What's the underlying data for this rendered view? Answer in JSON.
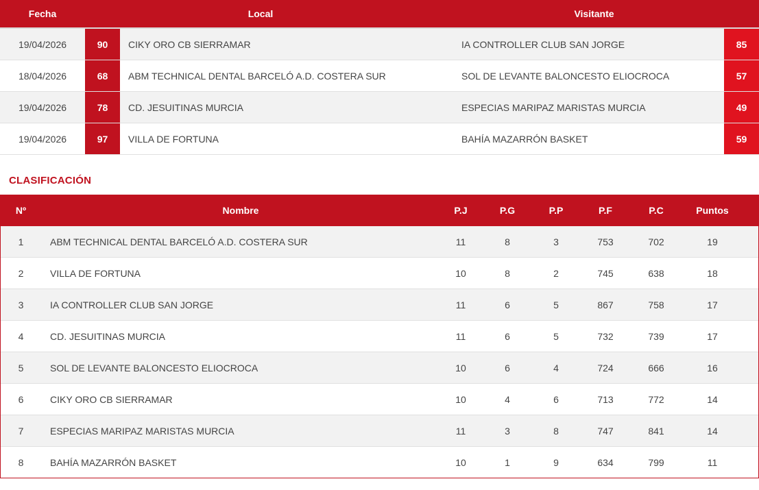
{
  "results": {
    "headers": {
      "fecha": "Fecha",
      "local": "Local",
      "visitante": "Visitante"
    },
    "rows": [
      {
        "fecha": "19/04/2026",
        "local_score": "90",
        "local": "CIKY ORO CB SIERRAMAR",
        "visitante": "IA CONTROLLER CLUB SAN JORGE",
        "visit_score": "85"
      },
      {
        "fecha": "18/04/2026",
        "local_score": "68",
        "local": "ABM TECHNICAL DENTAL BARCELÓ A.D. COSTERA SUR",
        "visitante": "SOL DE LEVANTE BALONCESTO ELIOCROCA",
        "visit_score": "57"
      },
      {
        "fecha": "19/04/2026",
        "local_score": "78",
        "local": "CD. JESUITINAS MURCIA",
        "visitante": "ESPECIAS MARIPAZ MARISTAS MURCIA",
        "visit_score": "49"
      },
      {
        "fecha": "19/04/2026",
        "local_score": "97",
        "local": "VILLA DE FORTUNA",
        "visitante": "BAHÍA MAZARRÓN BASKET",
        "visit_score": "59"
      }
    ]
  },
  "standings": {
    "title": "CLASIFICACIÓN",
    "headers": {
      "n": "Nº",
      "nombre": "Nombre",
      "pj": "P.J",
      "pg": "P.G",
      "pp": "P.P",
      "pf": "P.F",
      "pc": "P.C",
      "puntos": "Puntos"
    },
    "rows": [
      {
        "n": "1",
        "nombre": "ABM TECHNICAL DENTAL BARCELÓ A.D. COSTERA SUR",
        "pj": "11",
        "pg": "8",
        "pp": "3",
        "pf": "753",
        "pc": "702",
        "puntos": "19"
      },
      {
        "n": "2",
        "nombre": "VILLA DE FORTUNA",
        "pj": "10",
        "pg": "8",
        "pp": "2",
        "pf": "745",
        "pc": "638",
        "puntos": "18"
      },
      {
        "n": "3",
        "nombre": "IA CONTROLLER CLUB SAN JORGE",
        "pj": "11",
        "pg": "6",
        "pp": "5",
        "pf": "867",
        "pc": "758",
        "puntos": "17"
      },
      {
        "n": "4",
        "nombre": "CD. JESUITINAS MURCIA",
        "pj": "11",
        "pg": "6",
        "pp": "5",
        "pf": "732",
        "pc": "739",
        "puntos": "17"
      },
      {
        "n": "5",
        "nombre": "SOL DE LEVANTE BALONCESTO ELIOCROCA",
        "pj": "10",
        "pg": "6",
        "pp": "4",
        "pf": "724",
        "pc": "666",
        "puntos": "16"
      },
      {
        "n": "6",
        "nombre": "CIKY ORO CB SIERRAMAR",
        "pj": "10",
        "pg": "4",
        "pp": "6",
        "pf": "713",
        "pc": "772",
        "puntos": "14"
      },
      {
        "n": "7",
        "nombre": "ESPECIAS MARIPAZ MARISTAS MURCIA",
        "pj": "11",
        "pg": "3",
        "pp": "8",
        "pf": "747",
        "pc": "841",
        "puntos": "14"
      },
      {
        "n": "8",
        "nombre": "BAHÍA MAZARRÓN BASKET",
        "pj": "10",
        "pg": "1",
        "pp": "9",
        "pf": "634",
        "pc": "799",
        "puntos": "11"
      }
    ]
  },
  "colors": {
    "accent": "#c0121f",
    "score_visit": "#e0131f",
    "row_alt": "#f2f2f2"
  }
}
